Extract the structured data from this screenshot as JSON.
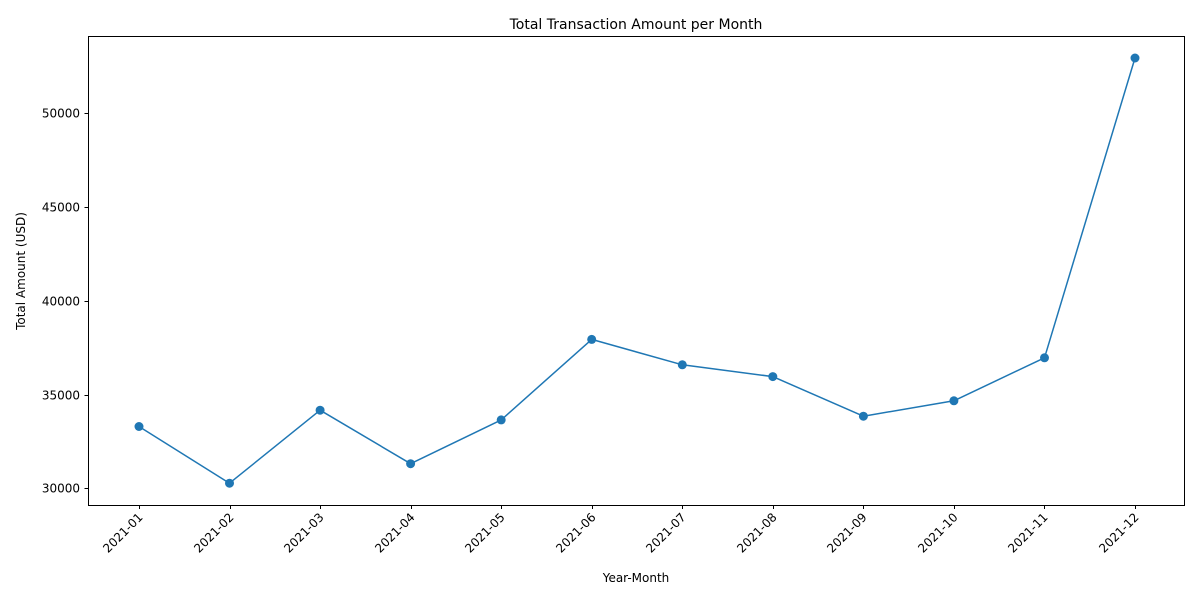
{
  "chart_data": {
    "type": "line",
    "title": "Total Transaction Amount per Month",
    "xlabel": "Year-Month",
    "ylabel": "Total Amount (USD)",
    "categories": [
      "2021-01",
      "2021-02",
      "2021-03",
      "2021-04",
      "2021-05",
      "2021-06",
      "2021-07",
      "2021-08",
      "2021-09",
      "2021-10",
      "2021-11",
      "2021-12"
    ],
    "series": [
      {
        "values": [
          33300,
          30280,
          34170,
          31320,
          33650,
          37940,
          36590,
          35960,
          33850,
          34670,
          36960,
          52930
        ],
        "color": "#1f77b4",
        "marker": "circle"
      }
    ],
    "ylim": [
      29120,
      54100
    ],
    "yticks": [
      30000,
      35000,
      40000,
      45000,
      50000
    ],
    "ytick_labels": [
      "30000",
      "35000",
      "40000",
      "45000",
      "50000"
    ],
    "grid": false,
    "legend": "none"
  }
}
